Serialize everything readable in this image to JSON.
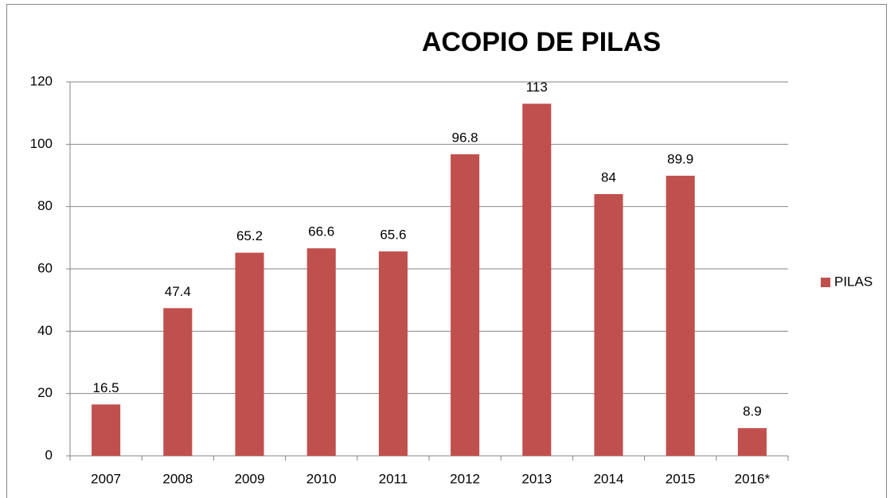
{
  "chart_data": {
    "type": "bar",
    "title": "ACOPIO DE PILAS",
    "categories": [
      "2007",
      "2008",
      "2009",
      "2010",
      "2011",
      "2012",
      "2013",
      "2014",
      "2015",
      "2016*"
    ],
    "series": [
      {
        "name": "PILAS",
        "color": "#c0504d",
        "values": [
          16.5,
          47.4,
          65.2,
          66.6,
          65.6,
          96.8,
          113,
          84,
          89.9,
          8.9
        ]
      }
    ],
    "ylim": [
      0,
      120
    ],
    "yticks": [
      0,
      20,
      40,
      60,
      80,
      100,
      120
    ],
    "grid": true,
    "legend": "right"
  }
}
